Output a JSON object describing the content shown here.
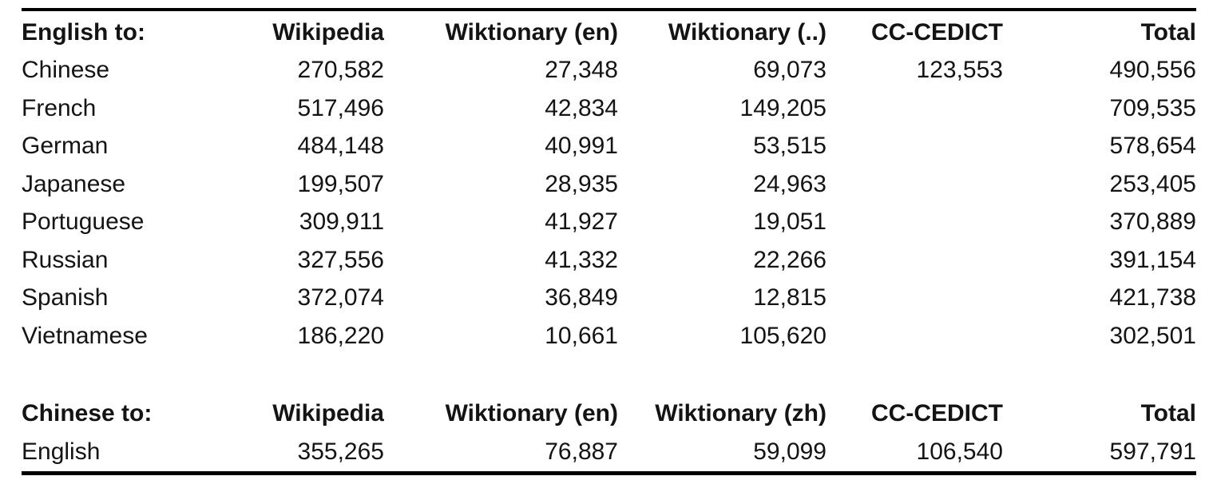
{
  "page": {
    "background_color": "#ffffff",
    "text_color": "#141414",
    "rule_color": "#000000"
  },
  "chart_data": [
    {
      "type": "table",
      "title": "English to:",
      "columns": [
        "English to:",
        "Wikipedia",
        "Wiktionary (en)",
        "Wiktionary (..)",
        "CC-CEDICT",
        "Total"
      ],
      "rows": [
        [
          "Chinese",
          "270,582",
          "27,348",
          "69,073",
          "123,553",
          "490,556"
        ],
        [
          "French",
          "517,496",
          "42,834",
          "149,205",
          "",
          "709,535"
        ],
        [
          "German",
          "484,148",
          "40,991",
          "53,515",
          "",
          "578,654"
        ],
        [
          "Japanese",
          "199,507",
          "28,935",
          "24,963",
          "",
          "253,405"
        ],
        [
          "Portuguese",
          "309,911",
          "41,927",
          "19,051",
          "",
          "370,889"
        ],
        [
          "Russian",
          "327,556",
          "41,332",
          "22,266",
          "",
          "391,154"
        ],
        [
          "Spanish",
          "372,074",
          "36,849",
          "12,815",
          "",
          "421,738"
        ],
        [
          "Vietnamese",
          "186,220",
          "10,661",
          "105,620",
          "",
          "302,501"
        ]
      ],
      "layout": {
        "first_column_align": "left",
        "numeric_columns_align": "right",
        "grid": "off",
        "rules": [
          "top",
          "bottom"
        ]
      }
    },
    {
      "type": "table",
      "title": "Chinese to:",
      "columns": [
        "Chinese to:",
        "Wikipedia",
        "Wiktionary (en)",
        "Wiktionary (zh)",
        "CC-CEDICT",
        "Total"
      ],
      "rows": [
        [
          "English",
          "355,265",
          "76,887",
          "59,099",
          "106,540",
          "597,791"
        ]
      ],
      "layout": {
        "first_column_align": "left",
        "numeric_columns_align": "right",
        "grid": "off",
        "rules": [
          "top",
          "bottom"
        ]
      }
    }
  ]
}
